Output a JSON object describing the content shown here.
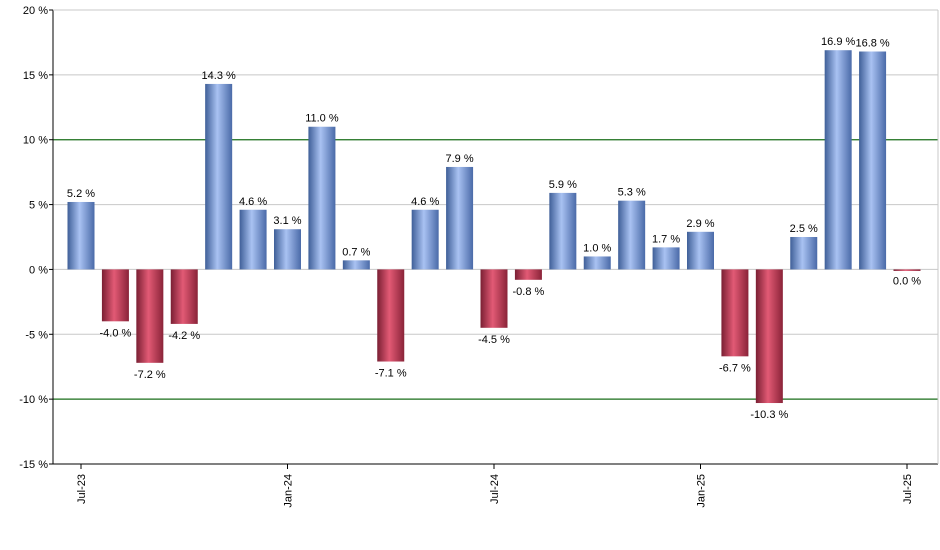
{
  "chart_data": {
    "type": "bar",
    "categories": [
      "2023-07",
      "2023-08",
      "2023-09",
      "2023-10",
      "2023-11",
      "2023-12",
      "2024-01",
      "2024-02",
      "2024-03",
      "2024-04",
      "2024-05",
      "2024-06",
      "2024-07",
      "2024-08",
      "2024-09",
      "2024-10",
      "2024-11",
      "2024-12",
      "2025-01",
      "2025-02",
      "2025-03",
      "2025-04",
      "2025-05",
      "2025-06",
      "2025-07"
    ],
    "values": [
      5.2,
      -4.0,
      -7.2,
      -4.2,
      14.3,
      4.6,
      3.1,
      11.0,
      0.7,
      -7.1,
      4.6,
      7.9,
      -4.5,
      -0.8,
      5.9,
      1.0,
      5.3,
      1.7,
      2.9,
      -6.7,
      -10.3,
      2.5,
      16.9,
      16.8,
      0.0
    ],
    "data_labels": [
      "5.2 %",
      "-4.0 %",
      "-7.2 %",
      "-4.2 %",
      "14.3 %",
      "4.6 %",
      "3.1 %",
      "11.0 %",
      "0.7 %",
      "-7.1 %",
      "4.6 %",
      "7.9 %",
      "-4.5 %",
      "-0.8 %",
      "5.9 %",
      "1.0 %",
      "5.3 %",
      "1.7 %",
      "2.9 %",
      "-6.7 %",
      "-10.3 %",
      "2.5 %",
      "16.9 %",
      "16.8 %",
      "0.0 %"
    ],
    "ylim": [
      -15,
      20
    ],
    "y_ticks": [
      20,
      15,
      10,
      5,
      0,
      -5,
      -10,
      -15
    ],
    "y_tick_labels": [
      "20 %",
      "15 %",
      "10 %",
      "5 %",
      "0 %",
      "-5 %",
      "-10 %",
      "-15 %"
    ],
    "x_ticks": [
      {
        "index": 0,
        "label": "Jul-23"
      },
      {
        "index": 6,
        "label": "Jan-24"
      },
      {
        "index": 12,
        "label": "Jul-24"
      },
      {
        "index": 18,
        "label": "Jan-25"
      },
      {
        "index": 24,
        "label": "Jul-25"
      }
    ],
    "reference_lines": [
      10,
      -10
    ],
    "grid": true,
    "legend": "none",
    "colors": {
      "positive": "#7a9ee0",
      "negative": "#c23a55",
      "gridline": "#c8c8c8",
      "reference_line": "#1a6e1a"
    }
  }
}
